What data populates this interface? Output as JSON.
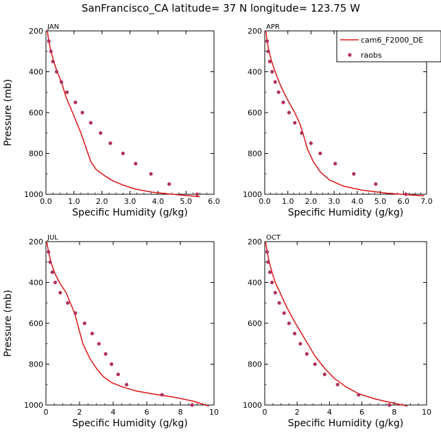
{
  "figure": {
    "title": "SanFrancisco_CA  latitude= 37 N longitude= 123.75 W"
  },
  "colors": {
    "model": "#dd1111",
    "obs": "#b0305a"
  },
  "legend": {
    "placement": "top-right of APR panel",
    "model_label": "cam6_F2000_DE",
    "obs_label": "raobs"
  },
  "chart_data": [
    {
      "type": "line",
      "panel": "JAN",
      "xlabel": "Specific Humidity (g/kg)",
      "ylabel": "Pressure (mb)",
      "xlim": [
        0,
        6
      ],
      "xticks": [
        "0.0",
        "1.0",
        "2.0",
        "3.0",
        "4.0",
        "5.0",
        "6.0"
      ],
      "ylim": [
        1000,
        200
      ],
      "yticks": [
        "200",
        "400",
        "600",
        "800",
        "1000"
      ],
      "series": [
        {
          "name": "cam6_F2000_DE",
          "kind": "line",
          "x": [
            0.05,
            0.1,
            0.18,
            0.28,
            0.4,
            0.55,
            0.72,
            0.95,
            1.25,
            1.45,
            1.6,
            1.8,
            2.1,
            2.4,
            2.75,
            3.2,
            3.8,
            4.5,
            5.5
          ],
          "y": [
            200,
            250,
            300,
            350,
            400,
            450,
            525,
            600,
            700,
            780,
            840,
            880,
            910,
            935,
            955,
            975,
            990,
            1000,
            1012
          ]
        },
        {
          "name": "raobs",
          "kind": "scatter",
          "x": [
            0.1,
            0.18,
            0.25,
            0.38,
            0.55,
            0.75,
            1.05,
            1.3,
            1.6,
            1.95,
            2.3,
            2.75,
            3.2,
            3.75,
            4.4,
            5.4
          ],
          "y": [
            250,
            300,
            350,
            400,
            450,
            500,
            550,
            600,
            650,
            700,
            750,
            800,
            850,
            900,
            950,
            1000
          ]
        }
      ]
    },
    {
      "type": "line",
      "panel": "APR",
      "xlabel": "Specific Humidity (g/kg)",
      "ylabel": "",
      "xlim": [
        0,
        7
      ],
      "xticks": [
        "0.0",
        "1.0",
        "2.0",
        "3.0",
        "4.0",
        "5.0",
        "6.0",
        "7.0"
      ],
      "ylim": [
        1000,
        200
      ],
      "yticks": [
        "200",
        "400",
        "600",
        "800",
        "1000"
      ],
      "series": [
        {
          "name": "cam6_F2000_DE",
          "kind": "line",
          "x": [
            0.05,
            0.1,
            0.18,
            0.3,
            0.45,
            0.62,
            0.82,
            1.05,
            1.3,
            1.5,
            1.65,
            1.85,
            2.1,
            2.4,
            2.8,
            3.4,
            4.2,
            5.3,
            6.9
          ],
          "y": [
            200,
            250,
            300,
            350,
            400,
            450,
            500,
            550,
            600,
            650,
            700,
            780,
            840,
            890,
            930,
            960,
            980,
            995,
            1008
          ]
        },
        {
          "name": "raobs",
          "kind": "scatter",
          "x": [
            0.1,
            0.15,
            0.22,
            0.32,
            0.45,
            0.6,
            0.8,
            1.05,
            1.3,
            1.6,
            2.0,
            2.4,
            3.05,
            3.85,
            4.8,
            6.1
          ],
          "y": [
            250,
            300,
            350,
            400,
            450,
            500,
            550,
            600,
            650,
            700,
            750,
            800,
            850,
            900,
            950,
            1000
          ]
        }
      ]
    },
    {
      "type": "line",
      "panel": "JUL",
      "xlabel": "Specific Humidity (g/kg)",
      "ylabel": "Pressure (mb)",
      "xlim": [
        0,
        10
      ],
      "xticks": [
        "0",
        "2",
        "4",
        "6",
        "8",
        "10"
      ],
      "ylim": [
        1000,
        200
      ],
      "yticks": [
        "200",
        "400",
        "600",
        "800",
        "1000"
      ],
      "series": [
        {
          "name": "cam6_F2000_DE",
          "kind": "line",
          "x": [
            0.05,
            0.15,
            0.3,
            0.5,
            0.8,
            1.2,
            1.7,
            2.2,
            2.6,
            3.0,
            3.4,
            3.9,
            4.5,
            5.3,
            6.3,
            7.5,
            8.7,
            9.7
          ],
          "y": [
            200,
            250,
            300,
            350,
            400,
            450,
            550,
            700,
            770,
            820,
            860,
            890,
            910,
            930,
            945,
            960,
            980,
            1005
          ]
        },
        {
          "name": "raobs",
          "kind": "scatter",
          "x": [
            0.15,
            0.25,
            0.38,
            0.55,
            0.85,
            1.3,
            1.75,
            2.3,
            2.75,
            3.15,
            3.55,
            3.9,
            4.3,
            4.8,
            6.9,
            8.7
          ],
          "y": [
            250,
            300,
            350,
            400,
            450,
            500,
            550,
            600,
            650,
            700,
            750,
            800,
            850,
            900,
            950,
            1000
          ]
        }
      ]
    },
    {
      "type": "line",
      "panel": "OCT",
      "xlabel": "Specific Humidity (g/kg)",
      "ylabel": "",
      "xlim": [
        0,
        10
      ],
      "xticks": [
        "0",
        "2",
        "4",
        "6",
        "8",
        "10"
      ],
      "ylim": [
        1000,
        200
      ],
      "yticks": [
        "200",
        "400",
        "600",
        "800",
        "1000"
      ],
      "series": [
        {
          "name": "cam6_F2000_DE",
          "kind": "line",
          "x": [
            0.05,
            0.15,
            0.28,
            0.45,
            0.65,
            0.95,
            1.35,
            1.9,
            2.5,
            3.1,
            3.7,
            4.3,
            5.0,
            5.8,
            6.8,
            7.9,
            8.8
          ],
          "y": [
            200,
            250,
            300,
            350,
            400,
            450,
            520,
            600,
            680,
            760,
            820,
            870,
            910,
            945,
            970,
            990,
            1005
          ]
        },
        {
          "name": "raobs",
          "kind": "scatter",
          "x": [
            0.15,
            0.2,
            0.32,
            0.45,
            0.65,
            0.9,
            1.2,
            1.5,
            1.85,
            2.2,
            2.6,
            3.1,
            3.7,
            4.5,
            5.8,
            7.7
          ],
          "y": [
            250,
            300,
            350,
            400,
            450,
            500,
            550,
            600,
            650,
            700,
            750,
            800,
            850,
            900,
            950,
            1000
          ]
        }
      ]
    }
  ]
}
